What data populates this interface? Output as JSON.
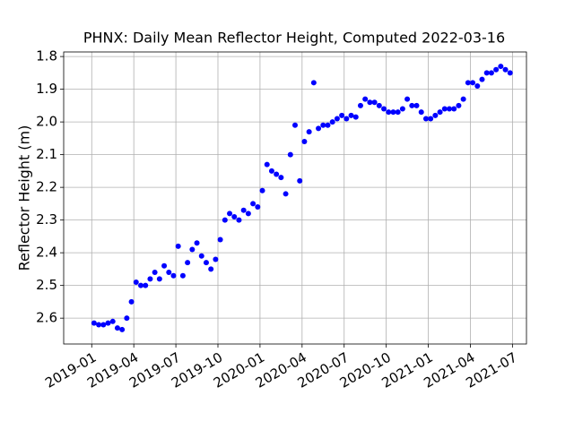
{
  "chart_data": {
    "type": "scatter",
    "title": "PHNX: Daily Mean Reflector Height, Computed 2022-03-16",
    "y_label": "Reflector Height (m)",
    "color": "#0000ff",
    "grid": true,
    "y_inverted": true,
    "x": [
      "2019-01",
      "2019-01",
      "2019-01",
      "2019-02",
      "2019-02",
      "2019-02",
      "2019-03",
      "2019-03",
      "2019-03",
      "2019-04",
      "2019-04",
      "2019-04",
      "2019-05",
      "2019-05",
      "2019-05",
      "2019-06",
      "2019-06",
      "2019-06",
      "2019-07",
      "2019-07",
      "2019-07",
      "2019-08",
      "2019-08",
      "2019-08",
      "2019-09",
      "2019-09",
      "2019-09",
      "2019-10",
      "2019-10",
      "2019-10",
      "2019-11",
      "2019-11",
      "2019-11",
      "2019-12",
      "2019-12",
      "2019-12",
      "2020-01",
      "2020-01",
      "2020-01",
      "2020-02",
      "2020-02",
      "2020-02",
      "2020-03",
      "2020-03",
      "2020-03",
      "2020-04",
      "2020-04",
      "2020-04",
      "2020-05",
      "2020-05",
      "2020-05",
      "2020-06",
      "2020-06",
      "2020-06",
      "2020-07",
      "2020-07",
      "2020-07",
      "2020-08",
      "2020-08",
      "2020-08",
      "2020-09",
      "2020-09",
      "2020-09",
      "2020-10",
      "2020-10",
      "2020-10",
      "2020-11",
      "2020-11",
      "2020-11",
      "2020-12",
      "2020-12",
      "2020-12",
      "2021-01",
      "2021-01",
      "2021-01",
      "2021-02",
      "2021-02",
      "2021-02",
      "2021-03",
      "2021-03",
      "2021-03",
      "2021-04",
      "2021-04",
      "2021-04",
      "2021-05",
      "2021-05",
      "2021-05",
      "2021-06",
      "2021-06",
      "2021-06"
    ],
    "values": [
      2.615,
      2.62,
      2.62,
      2.615,
      2.61,
      2.63,
      2.635,
      2.6,
      2.55,
      2.49,
      2.5,
      2.5,
      2.48,
      2.46,
      2.48,
      2.44,
      2.46,
      2.47,
      2.38,
      2.47,
      2.43,
      2.39,
      2.37,
      2.41,
      2.43,
      2.45,
      2.42,
      2.36,
      2.3,
      2.28,
      2.29,
      2.3,
      2.27,
      2.28,
      2.25,
      2.26,
      2.21,
      2.13,
      2.15,
      2.16,
      2.17,
      2.22,
      2.1,
      2.01,
      2.18,
      2.06,
      2.03,
      1.88,
      2.02,
      2.01,
      2.01,
      2.0,
      1.99,
      1.98,
      1.99,
      1.98,
      1.985,
      1.95,
      1.93,
      1.94,
      1.94,
      1.95,
      1.96,
      1.97,
      1.97,
      1.97,
      1.96,
      1.93,
      1.95,
      1.95,
      1.97,
      1.99,
      1.99,
      1.98,
      1.97,
      1.96,
      1.96,
      1.96,
      1.95,
      1.93,
      1.88,
      1.88,
      1.89,
      1.87,
      1.85,
      1.85,
      1.84,
      1.83,
      1.84,
      1.85
    ],
    "xlim": [
      "2018-11",
      "2021-08"
    ],
    "xticks": [
      "2019-01",
      "2019-04",
      "2019-07",
      "2019-10",
      "2020-01",
      "2020-04",
      "2020-07",
      "2020-10",
      "2021-01",
      "2021-04",
      "2021-07"
    ],
    "ylim": [
      2.679,
      1.786
    ],
    "yticks": [
      1.8,
      1.9,
      {
        "value": 2,
        "label": "2.0"
      },
      2.1,
      2.2,
      2.3,
      2.4,
      2.5,
      2.6
    ]
  }
}
